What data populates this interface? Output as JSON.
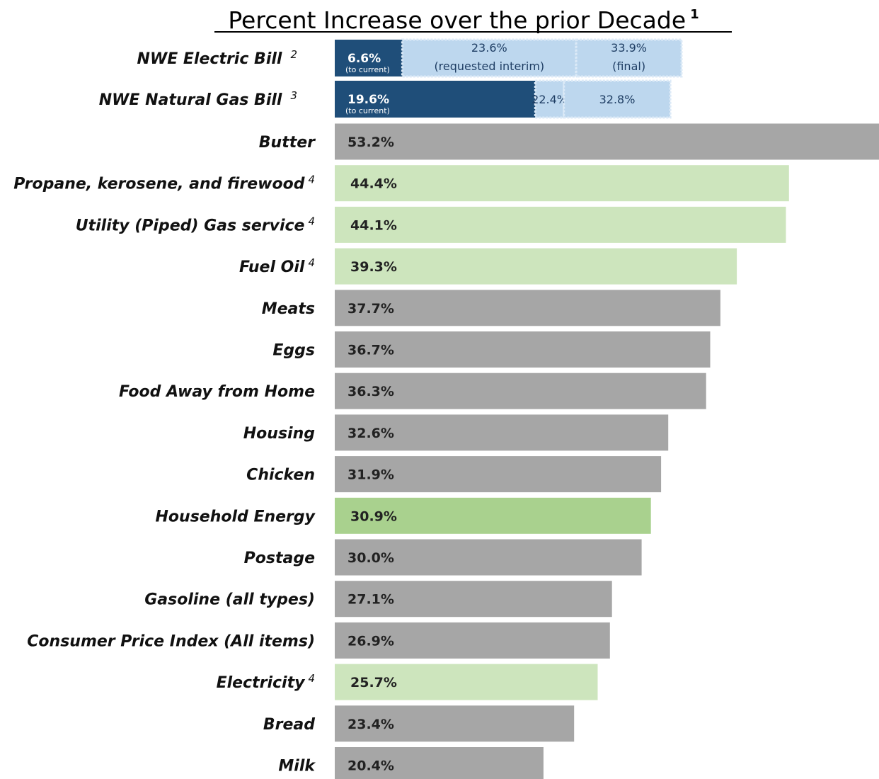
{
  "colors": {
    "gray": "#a6a6a6",
    "light_green": "#cde5bd",
    "mid_green": "#a9d18e",
    "navy": "#1f4e79",
    "light_blue": "#bdd7ee",
    "segment_border": "#dceaf7"
  },
  "chart_data": {
    "type": "bar",
    "orientation": "horizontal",
    "title": "Percent Increase over the prior Decade",
    "title_superscript": "1",
    "xlabel": "",
    "ylabel": "",
    "xlim": [
      0,
      53.2
    ],
    "grid": false,
    "legend": "none",
    "stacked_rows": [
      {
        "label": "NWE Electric Bill",
        "sup": "2",
        "segments": [
          {
            "cumulative": 6.6,
            "text": "6.6%",
            "note": "(to current)",
            "style": "navy"
          },
          {
            "cumulative": 23.6,
            "text": "23.6%",
            "note": "(requested interim)",
            "style": "light_blue"
          },
          {
            "cumulative": 33.9,
            "text": "33.9%",
            "note": "(final)",
            "style": "light_blue"
          }
        ]
      },
      {
        "label": "NWE Natural Gas Bill",
        "sup": "3",
        "segments": [
          {
            "cumulative": 19.6,
            "text": "19.6%",
            "note": "(to current)",
            "style": "navy"
          },
          {
            "cumulative": 22.4,
            "text": "22.4%",
            "note": "",
            "style": "light_blue"
          },
          {
            "cumulative": 32.8,
            "text": "32.8%",
            "note": "",
            "style": "light_blue"
          }
        ]
      }
    ],
    "categories": [
      "Butter",
      "Propane, kerosene, and firewood",
      "Utility (Piped) Gas service",
      "Fuel Oil",
      "Meats",
      "Eggs",
      "Food Away from Home",
      "Housing",
      "Chicken",
      "Household Energy",
      "Postage",
      "Gasoline (all types)",
      "Consumer Price Index (All items)",
      "Electricity",
      "Bread",
      "Milk"
    ],
    "values": [
      53.2,
      44.4,
      44.1,
      39.3,
      37.7,
      36.7,
      36.3,
      32.6,
      31.9,
      30.9,
      30.0,
      27.1,
      26.9,
      25.7,
      23.4,
      20.4
    ],
    "value_labels": [
      "53.2%",
      "44.4%",
      "44.1%",
      "39.3%",
      "37.7%",
      "36.7%",
      "36.3%",
      "32.6%",
      "31.9%",
      "30.9%",
      "30.0%",
      "27.1%",
      "26.9%",
      "25.7%",
      "23.4%",
      "20.4%"
    ],
    "superscripts": [
      "",
      "4",
      "4",
      "4",
      "",
      "",
      "",
      "",
      "",
      "",
      "",
      "",
      "",
      "4",
      "",
      ""
    ],
    "bar_colors": [
      "gray",
      "light_green",
      "light_green",
      "light_green",
      "gray",
      "gray",
      "gray",
      "gray",
      "gray",
      "mid_green",
      "gray",
      "gray",
      "gray",
      "light_green",
      "gray",
      "gray"
    ]
  }
}
